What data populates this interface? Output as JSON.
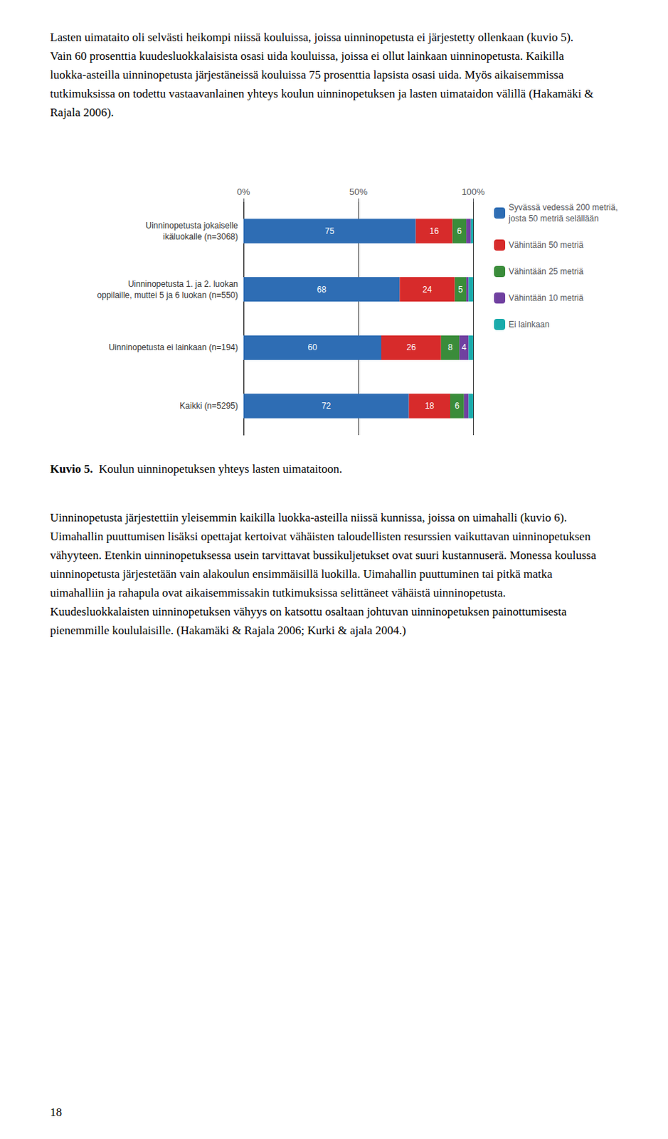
{
  "chart_data": {
    "type": "bar",
    "orientation": "horizontal",
    "stacked": true,
    "title": "Kuvio 5.",
    "subtitle": "  Koulun uinninopetuksen yhteys lasten uimataitoon.",
    "annotations": [
      "Lasten uimataito oli selvästi heikompi niissä kouluissa, joissa uinninopetusta ei järjestetty ollenkaan (kuvio 5). Vain 60 prosenttia kuudesluokkalaisista osasi uida kouluissa, joissa ei ollut lainkaan uinninopetusta. Kaikilla luokka-asteilla uinninopetusta järjestäneissä kouluissa 75 prosenttia lapsista osasi uida. Myös aikaisemmissa tutkimuksissa on todettu vastaavanlainen yhteys koulun uinninopetuksen ja lasten uimataidon välillä (Hakamäki & Rajala 2006).",
      "Uinninopetusta järjestettiin yleisemmin kaikilla luokka-asteilla niissä kunnissa, joissa on uimahalli (kuvio 6). Uimahallin puuttumisen lisäksi opettajat kertoivat vähäisten taloudellisten resurssien vaikuttavan uinninopetuksen vähyyteen. Etenkin uinninopetuksessa usein tarvittavat bussikuljetukset ovat suuri kustannuserä. Monessa koulussa uinninopetusta järjestetään vain alakoulun ensimmäisillä luokilla. Uimahallin puuttuminen tai pitkä matka uimahalliin ja rahapula ovat aikaisemmissakin tutkimuksissa selittäneet vähäistä uinninopetusta. Kuudesluokkalaisten uinninopetuksen vähyys on katsottu osaltaan johtuvan uinninopetuksen painottumisesta pienemmille koululaisille. (Hakamäki & Rajala 2006; Kurki & ajala 2004.)",
      "18"
    ],
    "categories": [
      "Uinninopetusta jokaiselle\nikäluokalle (n=3068)",
      "Uinninopetusta 1. ja 2. luokan\noppilaille, muttei 5 ja 6 luokan (n=550)",
      "Uinninopetusta ei lainkaan (n=194)",
      "Kaikki (n=5295)"
    ],
    "series": [
      {
        "name": "Syvässä vedessä 200 metriä,\njosta 50 metriä selällään",
        "color": "#2E6DB4",
        "values": [
          75,
          68,
          60,
          72
        ],
        "value_labels": [
          "75",
          "68",
          "60",
          "72"
        ]
      },
      {
        "name": "Vähintään 50 metriä",
        "color": "#D72B2B",
        "values": [
          16,
          24,
          26,
          18
        ],
        "value_labels": [
          "16",
          "24",
          "26",
          "18"
        ]
      },
      {
        "name": "Vähintään 25 metriä",
        "color": "#3A8C3A",
        "values": [
          6,
          5,
          8,
          6
        ],
        "value_labels": [
          "6",
          "5",
          "8",
          "6"
        ]
      },
      {
        "name": "Vähintään 10 metriä",
        "color": "#7040A0",
        "values": [
          2,
          1,
          4,
          2
        ],
        "value_labels": [
          null,
          null,
          "4",
          null
        ]
      },
      {
        "name": "Ei lainkaan",
        "color": "#1AABAB",
        "values": [
          1,
          2,
          2,
          2
        ],
        "value_labels": [
          null,
          null,
          null,
          null
        ]
      }
    ],
    "xlim": [
      0,
      100
    ],
    "xticks": [
      {
        "value": 0,
        "label": "0%"
      },
      {
        "value": 50,
        "label": "50%"
      },
      {
        "value": 100,
        "label": "100%"
      }
    ],
    "grid": true,
    "legend": "right",
    "data_labels": true
  }
}
